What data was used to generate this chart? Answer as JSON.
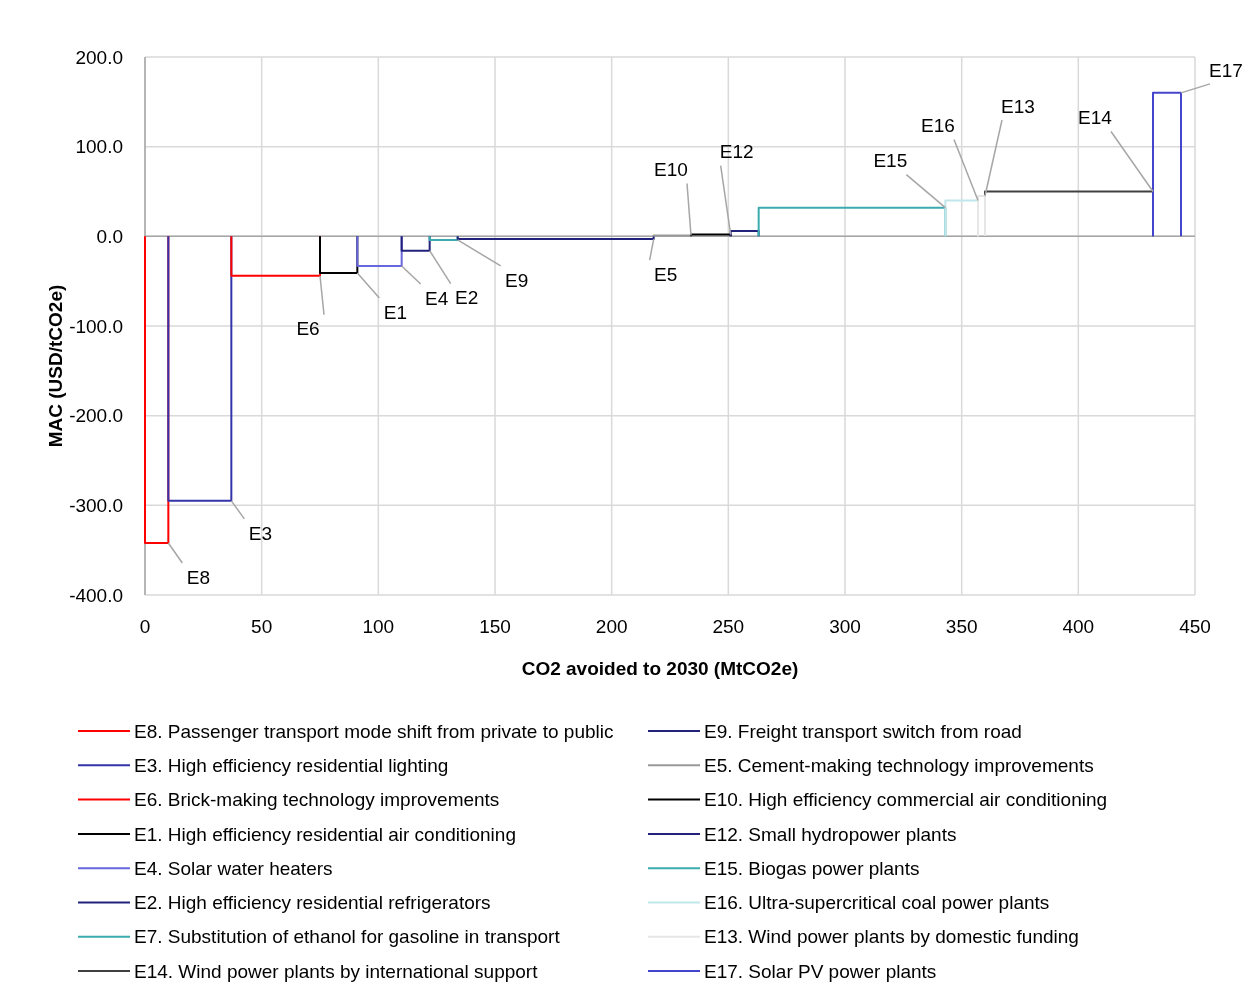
{
  "chart_data": {
    "type": "line",
    "xlabel": "CO2 avoided to 2030 (MtCO2e)",
    "ylabel": "MAC (USD/tCO2e)",
    "xlim": [
      0,
      450
    ],
    "xticks": [
      0,
      50,
      100,
      150,
      200,
      250,
      300,
      350,
      400,
      450
    ],
    "ylim": [
      -400,
      200
    ],
    "yticks": [
      {
        "value": -400,
        "label": "-400.0"
      },
      {
        "value": -300,
        "label": "-300.0"
      },
      {
        "value": -200,
        "label": "-200.0"
      },
      {
        "value": -100,
        "label": "-100.0"
      },
      {
        "value": 0,
        "label": "0.0"
      },
      {
        "value": 100,
        "label": "100.0"
      },
      {
        "value": 200,
        "label": "200.0"
      }
    ],
    "grid": true,
    "legend": "bottom",
    "marker": "none",
    "line_style": "solid",
    "series": [
      {
        "name": "E8. Passenger transport mode shift from private to public",
        "color": "#ff0000",
        "x": [
          0,
          0,
          10,
          10
        ],
        "values": [
          0,
          -342,
          -342,
          0
        ]
      },
      {
        "name": "E3. High efficiency residential lighting",
        "color": "#3333aa",
        "x": [
          10,
          10,
          37,
          37
        ],
        "values": [
          0,
          -295,
          -295,
          0
        ]
      },
      {
        "name": "E6. Brick-making technology improvements",
        "color": "#ff0000",
        "x": [
          37,
          37,
          75,
          75
        ],
        "values": [
          0,
          -44,
          -44,
          0
        ]
      },
      {
        "name": "E1. High efficiency residential air conditioning",
        "color": "#000000",
        "x": [
          75,
          75,
          91,
          91
        ],
        "values": [
          0,
          -41,
          -41,
          0
        ]
      },
      {
        "name": "E4. Solar water heaters",
        "color": "#6666dd",
        "x": [
          91,
          91,
          110,
          110
        ],
        "values": [
          0,
          -33,
          -33,
          0
        ]
      },
      {
        "name": "E2. High efficiency residential refrigerators",
        "color": "#22227a",
        "x": [
          110,
          110,
          122,
          122
        ],
        "values": [
          0,
          -16,
          -16,
          0
        ]
      },
      {
        "name": "E7. Substitution of ethanol for gasoline in transport",
        "color": "#3aacb0",
        "x": [
          122,
          122,
          134,
          134
        ],
        "values": [
          0,
          -4,
          -4,
          0
        ]
      },
      {
        "name": "E14. Wind power plants by international support",
        "color": "#404040",
        "x": [
          360,
          360,
          432,
          432
        ],
        "values": [
          0,
          50,
          50,
          0
        ]
      },
      {
        "name": "E9. Freight transport switch from road",
        "color": "#22227a",
        "x": [
          134,
          134,
          218,
          218
        ],
        "values": [
          0,
          -3,
          -3,
          0
        ]
      },
      {
        "name": "E5. Cement-making technology improvements",
        "color": "#999999",
        "x": [
          218,
          218,
          234,
          234
        ],
        "values": [
          0,
          1,
          1,
          0
        ]
      },
      {
        "name": "E10. High efficiency commercial air conditioning",
        "color": "#000000",
        "x": [
          234,
          234,
          251,
          251
        ],
        "values": [
          0,
          2,
          2,
          0
        ]
      },
      {
        "name": "E12. Small hydropower plants",
        "color": "#22227a",
        "x": [
          251,
          251,
          263,
          263
        ],
        "values": [
          0,
          6,
          6,
          0
        ]
      },
      {
        "name": "E15. Biogas power plants",
        "color": "#3aacb0",
        "x": [
          263,
          263,
          343,
          343
        ],
        "values": [
          0,
          32,
          32,
          0
        ]
      },
      {
        "name": "E16. Ultra-supercritical coal power plants",
        "color": "#bfe6ea",
        "x": [
          343,
          343,
          357,
          357
        ],
        "values": [
          0,
          40,
          40,
          0
        ]
      },
      {
        "name": "E13. Wind power plants by domestic funding",
        "color": "#e6e6e6",
        "x": [
          357,
          357,
          360,
          360
        ],
        "values": [
          0,
          45,
          45,
          0
        ]
      },
      {
        "name": "E17. Solar PV power plants",
        "color": "#4444cc",
        "x": [
          432,
          432,
          444,
          444
        ],
        "values": [
          0,
          160,
          160,
          0
        ]
      }
    ],
    "annotations": [
      {
        "text": "E8",
        "x": 10,
        "y": -342
      },
      {
        "text": "E3",
        "x": 37,
        "y": -295
      },
      {
        "text": "E6",
        "x": 75,
        "y": -44
      },
      {
        "text": "E1",
        "x": 91,
        "y": -41
      },
      {
        "text": "E4",
        "x": 110,
        "y": -33
      },
      {
        "text": "E2",
        "x": 122,
        "y": -16
      },
      {
        "text": "E9",
        "x": 134,
        "y": -4
      },
      {
        "text": "E5",
        "x": 218,
        "y": -3
      },
      {
        "text": "E10",
        "x": 234,
        "y": 1
      },
      {
        "text": "E12",
        "x": 251,
        "y": 2
      },
      {
        "text": "E15",
        "x": 343,
        "y": 32
      },
      {
        "text": "E16",
        "x": 357,
        "y": 40
      },
      {
        "text": "E13",
        "x": 360,
        "y": 45
      },
      {
        "text": "E14",
        "x": 432,
        "y": 50
      },
      {
        "text": "E17",
        "x": 444,
        "y": 160
      }
    ]
  }
}
